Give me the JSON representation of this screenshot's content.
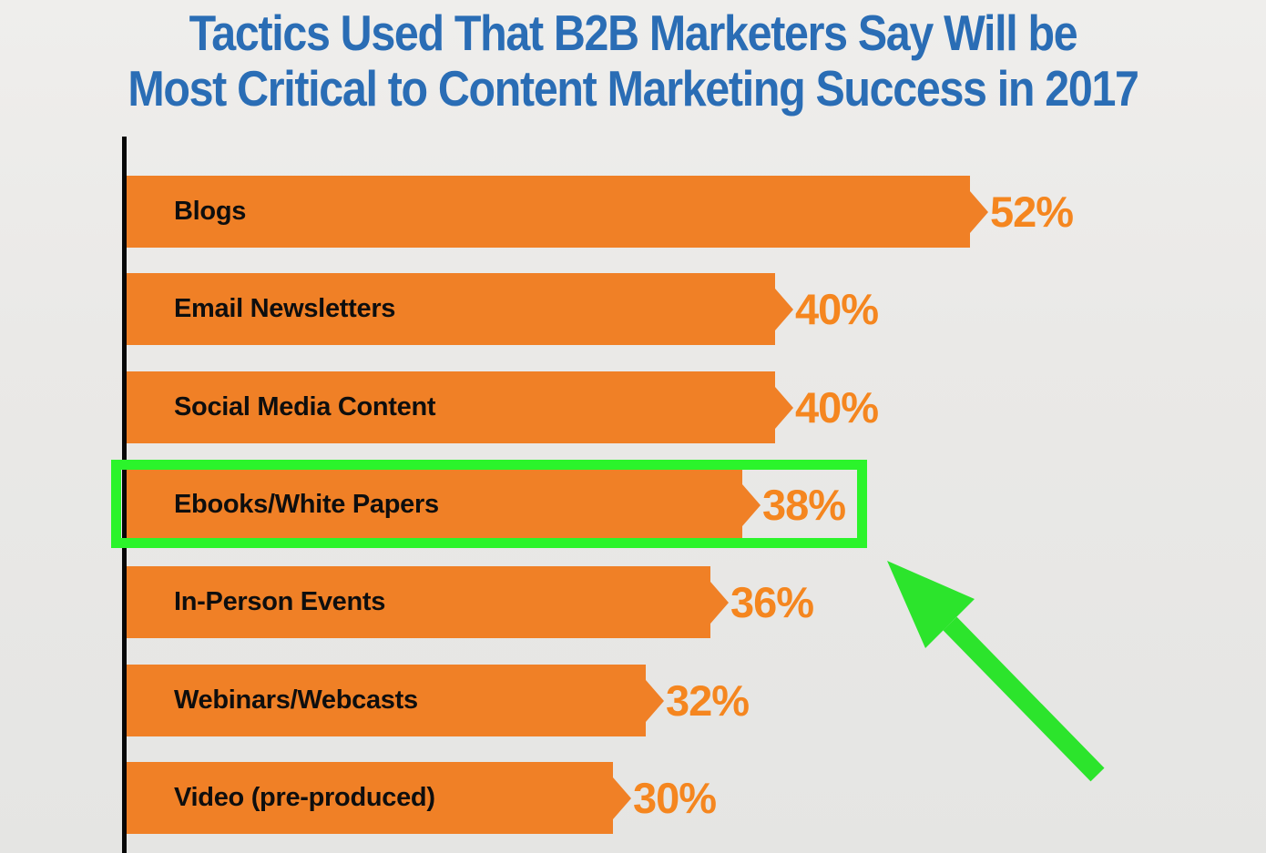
{
  "title": {
    "line1": "Tactics Used That B2B Marketers Say Will be",
    "line2": "Most Critical to Content Marketing Success in 2017",
    "color": "#2A6DB5"
  },
  "chart_data": {
    "type": "bar",
    "orientation": "horizontal",
    "categories": [
      "Blogs",
      "Email Newsletters",
      "Social Media Content",
      "Ebooks/White Papers",
      "In-Person Events",
      "Webinars/Webcasts",
      "Video (pre-produced)"
    ],
    "values": [
      52,
      40,
      40,
      38,
      36,
      32,
      30
    ],
    "value_labels": [
      "52%",
      "40%",
      "40%",
      "38%",
      "36%",
      "32%",
      "30%"
    ],
    "unit": "%",
    "xlim": [
      0,
      60
    ],
    "grid": false,
    "legend": "none",
    "bar_color": "#F08026",
    "value_label_color": "#F5861F",
    "category_label_color": "#0E0E0E",
    "axis_line_color": "#070707",
    "annotation": {
      "type": "highlight-box-with-arrow",
      "highlighted_category": "Ebooks/White Papers",
      "highlighted_value_label": "38%",
      "box_color": "#2BF42B",
      "arrow_color": "#2CE42C"
    }
  }
}
